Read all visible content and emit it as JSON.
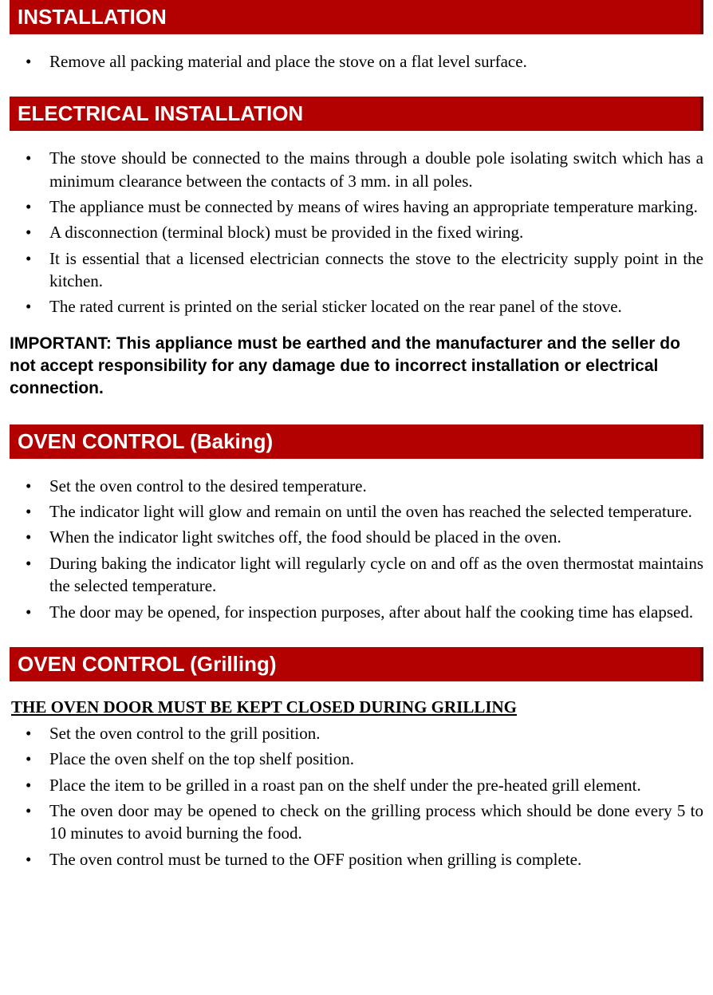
{
  "colors": {
    "header_bg": "#b30000",
    "header_border": "#7a0000",
    "header_text": "#ffffff",
    "body_text": "#000000",
    "page_bg": "#ffffff"
  },
  "typography": {
    "header_font": "Arial",
    "header_fontsize": 26,
    "header_weight": "bold",
    "body_font": "Times New Roman",
    "body_fontsize": 21,
    "important_font": "Arial",
    "important_fontsize": 21,
    "important_weight": "bold"
  },
  "sections": {
    "installation": {
      "title": "INSTALLATION",
      "items": [
        "Remove all packing material and place the stove on a flat level surface."
      ]
    },
    "electrical": {
      "title": "ELECTRICAL INSTALLATION",
      "items": [
        "The stove should be connected to the mains through a double pole isolating switch which has a minimum clearance between the contacts of 3 mm. in all poles.",
        "The appliance must be connected by means of wires having an appropriate temperature marking.",
        "A disconnection (terminal block) must be provided in the fixed wiring.",
        "It is essential that a licensed electrician connects the stove to the electricity supply point in the kitchen.",
        "The rated current is printed on the serial sticker located on the rear panel of the stove."
      ],
      "important": "IMPORTANT: This appliance must be earthed and the manufacturer and the seller do not accept responsibility for any damage due to incorrect installation or electrical connection."
    },
    "baking": {
      "title": "OVEN CONTROL (Baking)",
      "items": [
        "Set the oven control to the desired temperature.",
        "The indicator light will glow and remain on until the oven has reached the selected temperature.",
        "When the indicator light switches off, the food should be placed in the oven.",
        "During baking the indicator light will regularly cycle on and off as the oven thermostat maintains the selected temperature.",
        "The door may be opened, for inspection purposes, after about half the cooking time has elapsed."
      ]
    },
    "grilling": {
      "title": "OVEN CONTROL (Grilling)",
      "subheading": "THE OVEN DOOR MUST BE KEPT CLOSED DURING GRILLING",
      "items": [
        "Set the oven control to the grill position.",
        "Place the oven shelf on the top shelf position.",
        "Place the item to be grilled in a roast pan on the shelf under the pre-heated grill element.",
        "The oven door may be opened to check on the grilling process which should be done every 5 to 10 minutes to avoid burning the food.",
        "The oven control must be turned to the OFF position when grilling is complete."
      ]
    }
  }
}
